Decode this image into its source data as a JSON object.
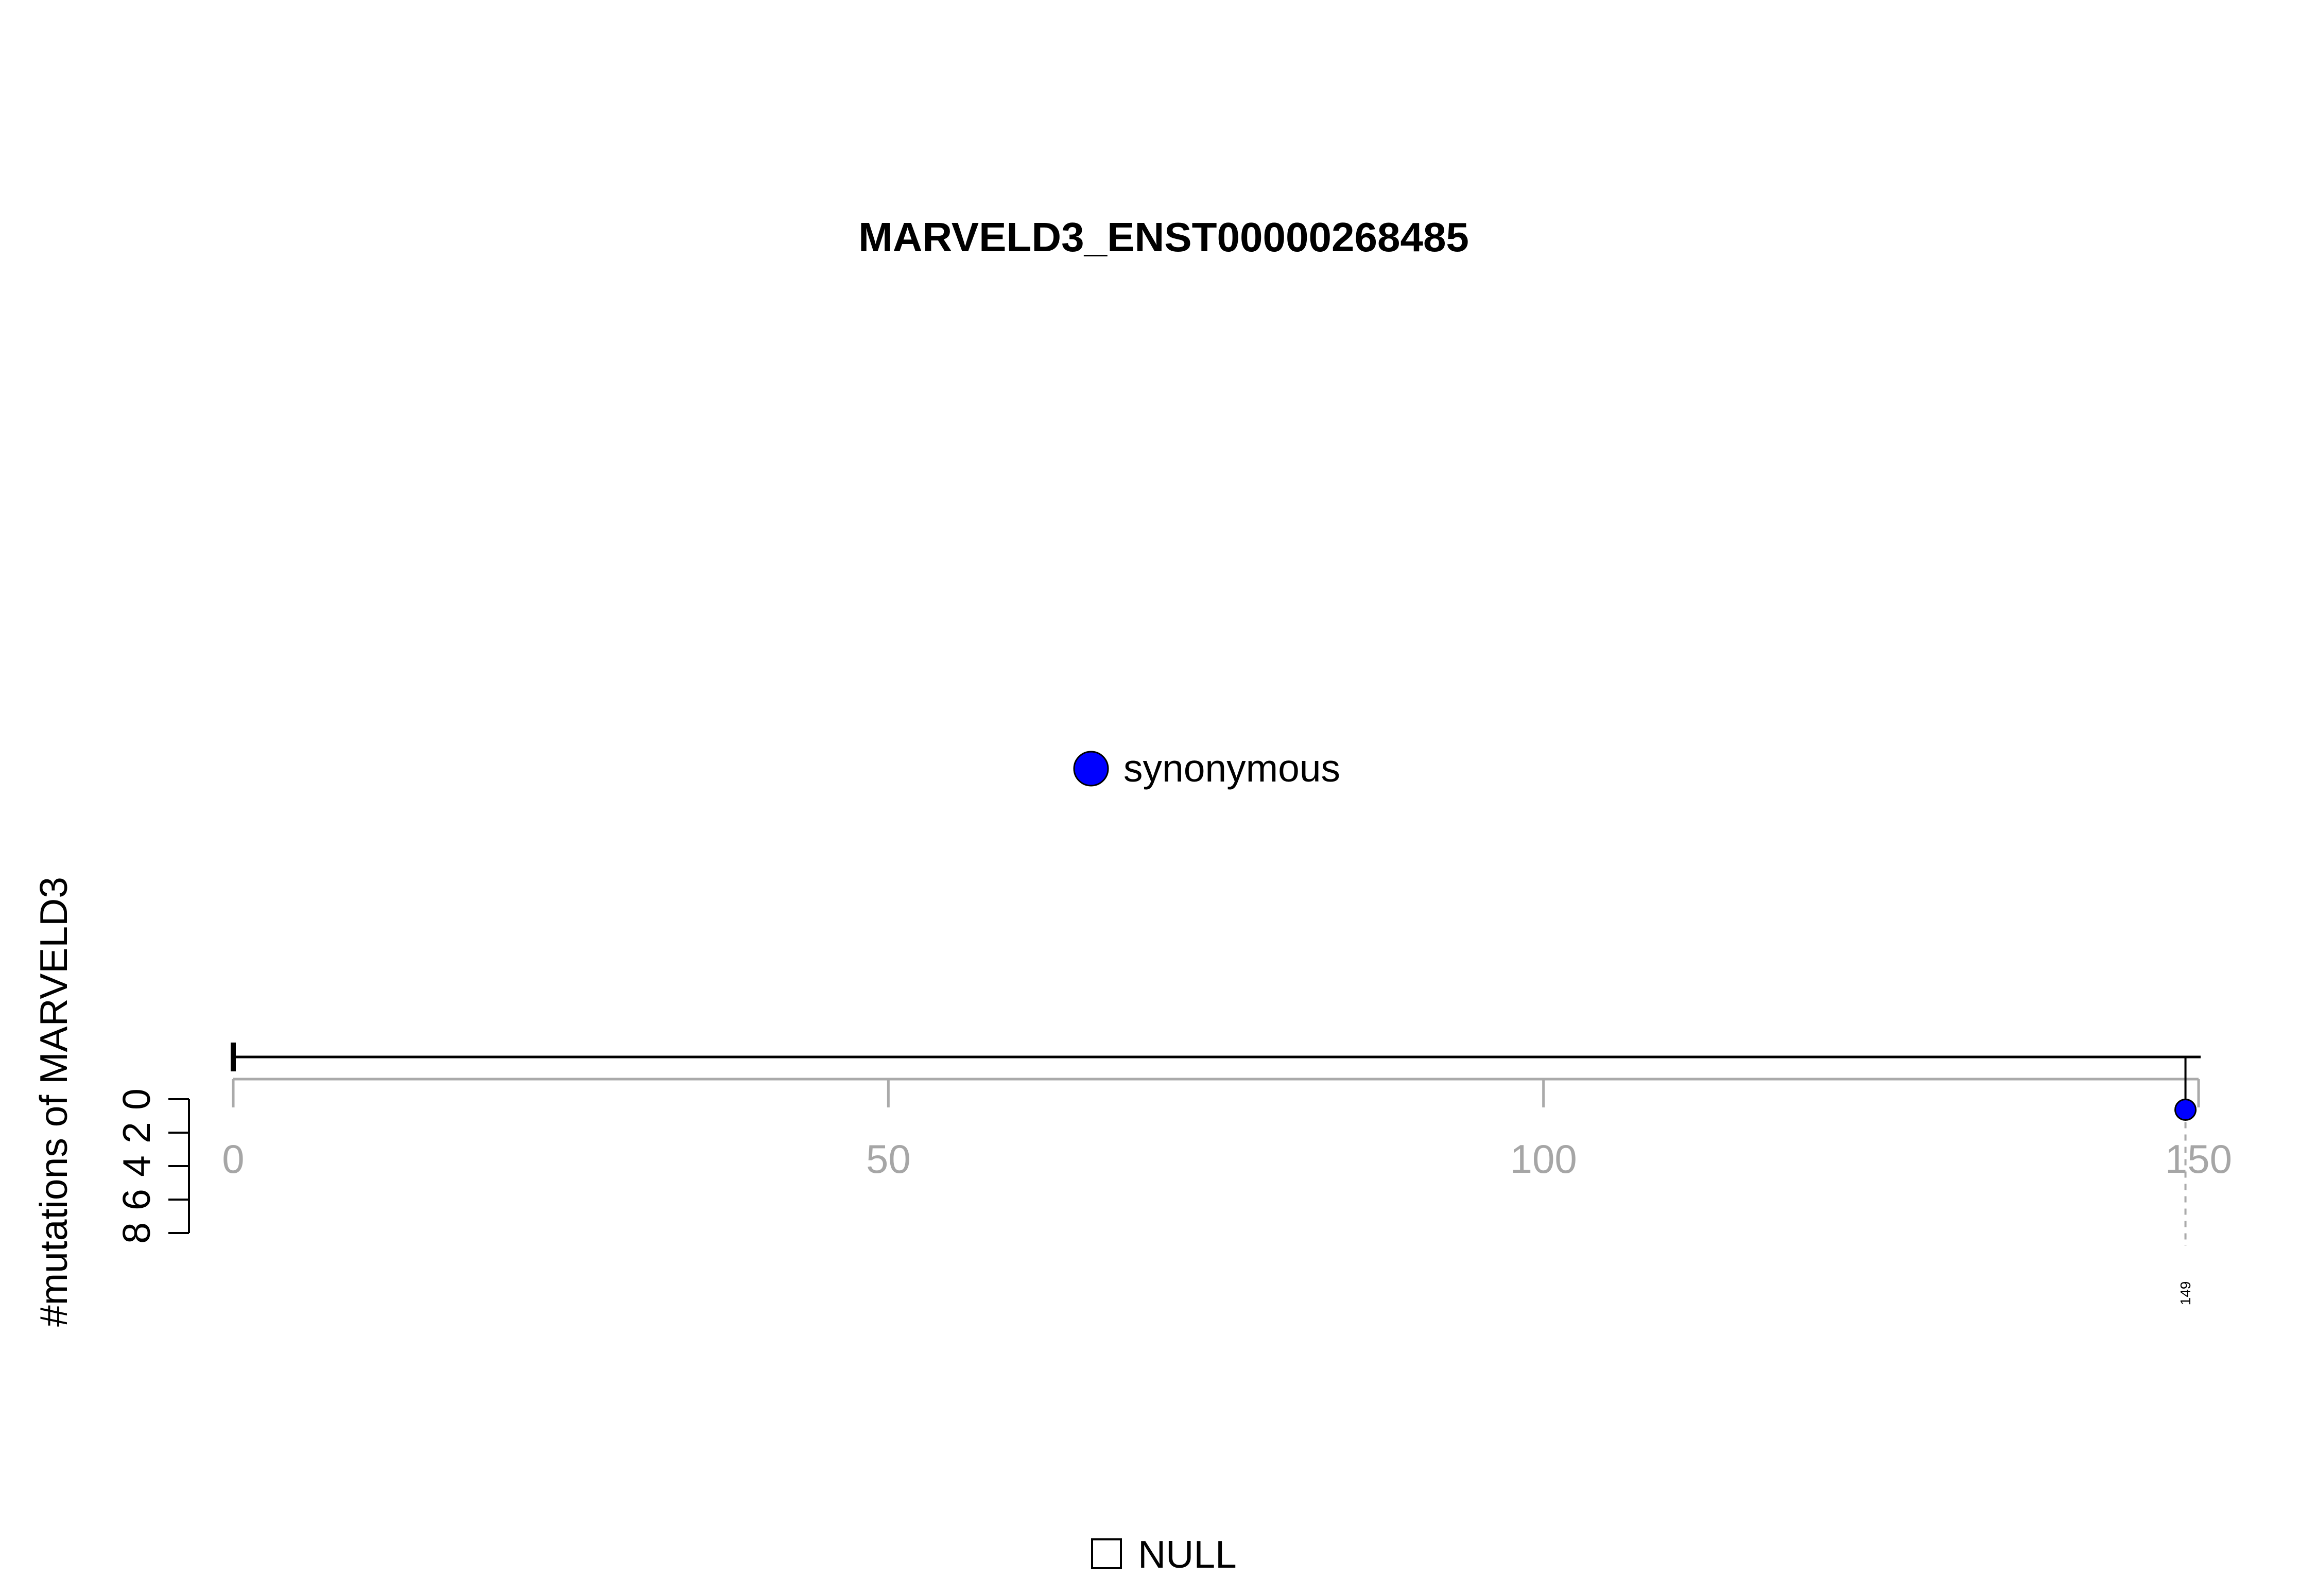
{
  "chart_data": {
    "type": "lollipop",
    "title": "MARVELD3_ENST00000268485",
    "ylabel": "#mutations of MARVELD3",
    "xlabel": "",
    "xlim": [
      0,
      150
    ],
    "x_ticks": [
      0,
      50,
      100,
      150
    ],
    "ylim": [
      0,
      8
    ],
    "y_ticks": [
      0,
      2,
      4,
      6,
      8
    ],
    "y_direction": "down",
    "protein_length": 150,
    "points": [
      {
        "position": 149,
        "count": 1,
        "type": "synonymous",
        "label": "149"
      }
    ],
    "legend_top": [
      {
        "label": "synonymous",
        "color": "#0000FF"
      }
    ],
    "legend_bottom": [
      {
        "label": "NULL",
        "color": "#FFFFFF"
      }
    ],
    "colors": {
      "synonymous": "#0000FF",
      "axis_gray": "#AAAAAA",
      "tick_label_gray": "#A6A6A6",
      "line": "#000000"
    }
  }
}
